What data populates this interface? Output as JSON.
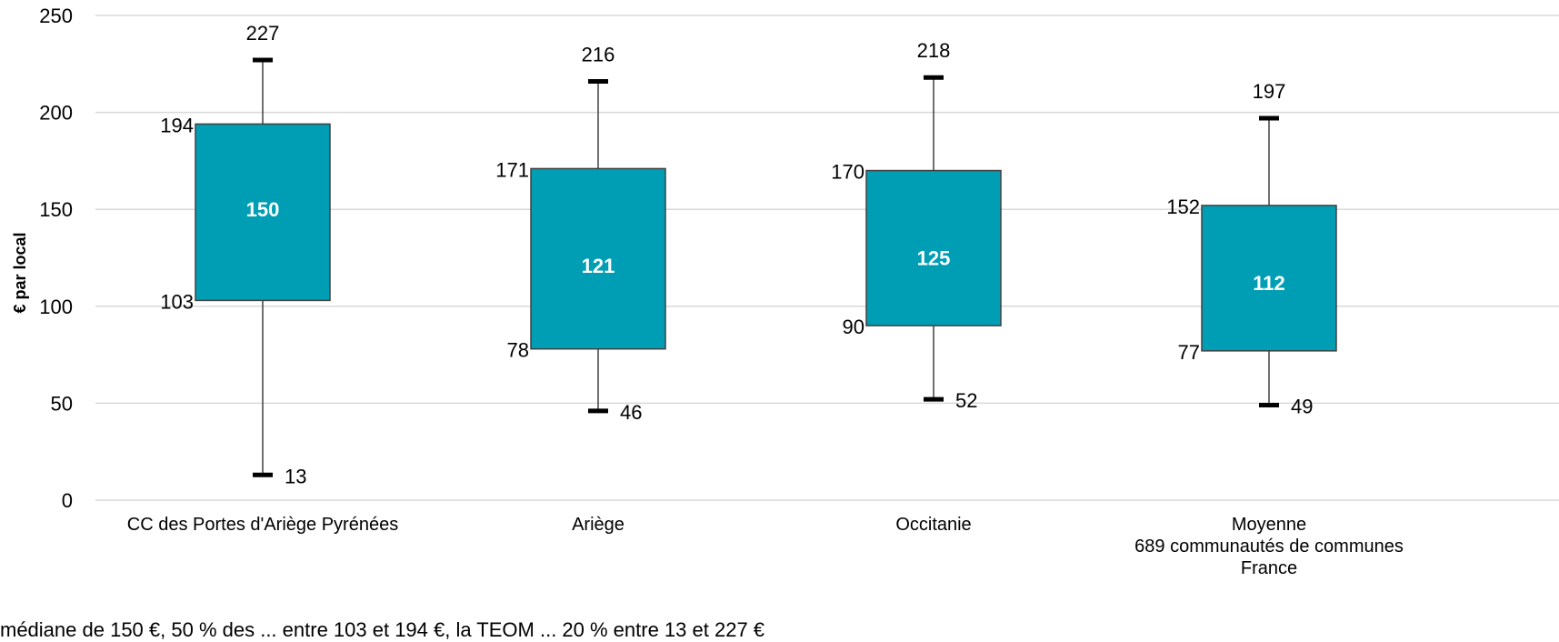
{
  "chart_data": {
    "type": "boxplot",
    "ylabel": "€ par local",
    "ylim": [
      0,
      250
    ],
    "yticks": [
      "0",
      "50",
      "100",
      "150",
      "200",
      "250"
    ],
    "grid": true,
    "colors": {
      "box": "#009EB4",
      "median_text": "#ffffff",
      "grid": "#d9d9d9"
    },
    "groups": [
      {
        "category": "CC des Portes d'Ariège Pyrénées",
        "min": 13,
        "q1": 103,
        "median": 150,
        "q3": 194,
        "max": 227
      },
      {
        "category": "Ariège",
        "min": 46,
        "q1": 78,
        "median": 121,
        "q3": 171,
        "max": 216
      },
      {
        "category": "Occitanie",
        "min": 52,
        "q1": 90,
        "median": 125,
        "q3": 170,
        "max": 218
      },
      {
        "category": "Moyenne\n689 communautés de communes\nFrance",
        "min": 49,
        "q1": 77,
        "median": 112,
        "q3": 152,
        "max": 197
      }
    ]
  },
  "footnote": "médiane de 150 €, 50 % des ... entre 103 et 194 €, la TEOM ... 20 % entre 13 et 227 €"
}
